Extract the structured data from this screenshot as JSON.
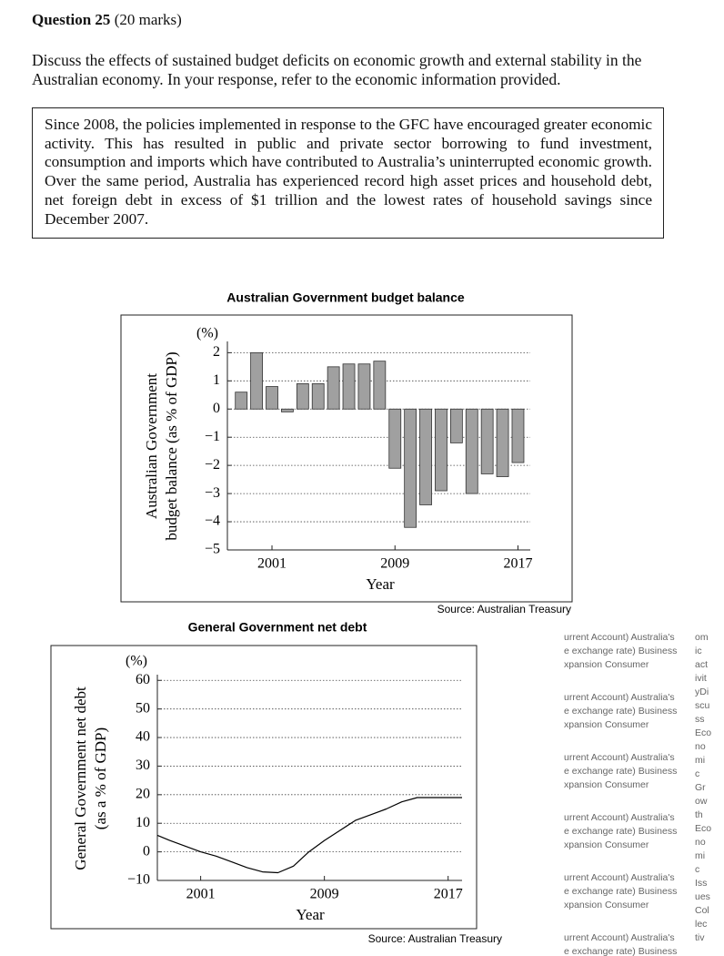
{
  "question": {
    "number": "Question 25",
    "marks": "(20 marks)",
    "prompt": "Discuss the effects of sustained budget deficits on economic growth and external stability in the Australian economy. In your response, refer to the economic information provided.",
    "stimulus": "Since 2008, the policies implemented in response to the GFC have encouraged greater economic activity. This has resulted in public and private sector borrowing to fund investment, consumption and imports which have contributed to Australia’s uninterrupted economic growth. Over the same period, Australia has experienced record high asset prices and household debt, net foreign debt in excess of $1 trillion and the lowest rates of household savings since December 2007."
  },
  "chart_data": [
    {
      "type": "bar",
      "title": "Australian Government budget balance",
      "ylabel": [
        "Australian Government",
        "budget balance (as % of GDP)"
      ],
      "yunit": "(%)",
      "xlabel": "Year",
      "source": "Source: Australian Treasury",
      "x": [
        1999,
        2000,
        2001,
        2002,
        2003,
        2004,
        2005,
        2006,
        2007,
        2008,
        2009,
        2010,
        2011,
        2012,
        2013,
        2014,
        2015,
        2016,
        2017
      ],
      "values": [
        0.6,
        2.0,
        0.8,
        -0.1,
        0.9,
        0.9,
        1.5,
        1.6,
        1.6,
        1.7,
        -2.1,
        -4.2,
        -3.4,
        -2.9,
        -1.2,
        -3.0,
        -2.3,
        -2.4,
        -1.9
      ],
      "color": "#a0a0a0",
      "xlim": [
        1998.1,
        2017.8
      ],
      "xticks": [
        2001,
        2009,
        2017
      ],
      "ylim": [
        -5,
        2.4
      ],
      "yticks": [
        {
          "value": -5,
          "label": "−5"
        },
        {
          "value": -4,
          "label": "−4"
        },
        {
          "value": -3,
          "label": "−3"
        },
        {
          "value": -2,
          "label": "−2"
        },
        {
          "value": -1,
          "label": "−1"
        },
        0,
        1,
        2
      ],
      "grid": true
    },
    {
      "type": "line",
      "title": "General Government net debt",
      "ylabel": [
        "General Government net debt",
        "(as a % of GDP)"
      ],
      "yunit": "(%)",
      "xlabel": "Year",
      "source": "Source: Australian Treasury",
      "x": [
        1998.2,
        1999,
        2000,
        2001,
        2002,
        2003,
        2004,
        2005,
        2006,
        2007,
        2008,
        2009,
        2010,
        2011,
        2012,
        2013,
        2014,
        2015,
        2016,
        2017,
        2017.9
      ],
      "values": [
        5.8,
        4,
        2,
        0,
        -1.5,
        -3.5,
        -5.5,
        -7,
        -7.3,
        -5,
        0,
        4,
        7.5,
        11,
        13,
        15,
        17.5,
        19,
        19,
        19,
        19
      ],
      "color": "#000000",
      "xlim": [
        1998.2,
        2017.9
      ],
      "xticks": [
        2001,
        2009,
        2017
      ],
      "ylim": [
        -10,
        62
      ],
      "yticks": [
        {
          "value": -10,
          "label": "−10"
        },
        0,
        10,
        20,
        30,
        40,
        50,
        60
      ],
      "grid": true
    }
  ],
  "sidebar": {
    "rows": [
      [
        "urrent Account)  Australia's",
        "e exchange rate)  Business",
        "xpansion  Consumer"
      ],
      [
        "urrent Account)  Australia's",
        "e exchange rate)  Business",
        "xpansion  Consumer"
      ],
      [
        "urrent Account)  Australia's",
        "e exchange rate)  Business",
        "xpansion  Consumer"
      ],
      [
        "urrent Account)  Australia's",
        "e exchange rate)  Business",
        "xpansion  Consumer"
      ],
      [
        "urrent Account)  Australia's",
        "e exchange rate)  Business",
        "xpansion  Consumer"
      ],
      [
        "urrent Account)  Australia's",
        "e exchange rate)  Business"
      ]
    ],
    "column": [
      "om",
      "ic",
      "act",
      "ivit",
      "yDi",
      "scu",
      "ss",
      "Eco",
      "no",
      "mi",
      "c",
      "Gr",
      "ow",
      "th",
      "Eco",
      "no",
      "mi",
      "c",
      "Iss",
      "ues",
      "Col",
      "lec",
      "tiv"
    ]
  }
}
